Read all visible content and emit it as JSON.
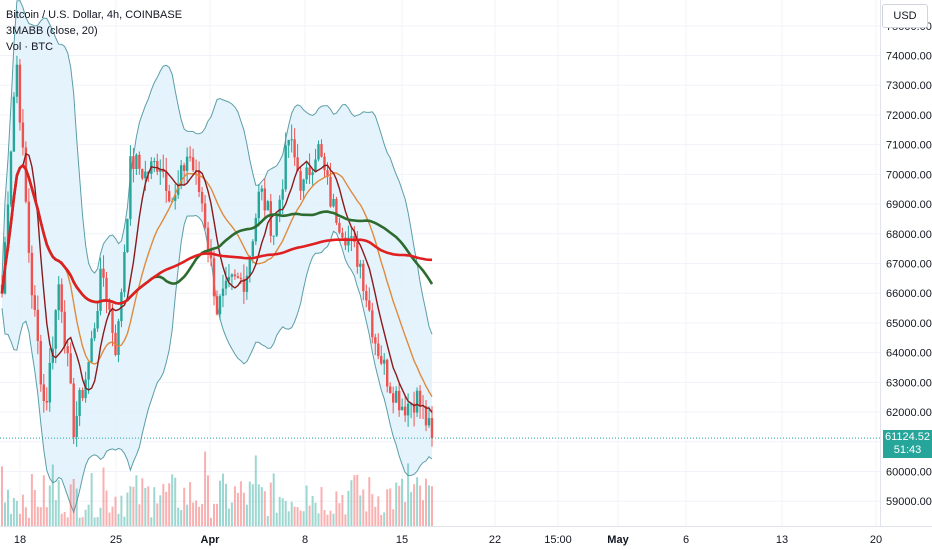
{
  "legend": {
    "symbol": "Bitcoin / U.S. Dollar, 4h, COINBASE",
    "indicator": "3MABB (close, 20)",
    "volume": "Vol · BTC"
  },
  "currency_button": "USD",
  "last_price": {
    "value": "61124.52",
    "countdown": "51:43"
  },
  "colors": {
    "up": "#26a69a",
    "down": "#ef5350",
    "band": "#5b9ea6",
    "band_fill": "#e1f1fb",
    "ma_fast": "#8b1a1a",
    "ma_mid": "#e08a3c",
    "ma_slow": "#2e6b2e",
    "ma_long": "#e02020"
  },
  "chart_data": {
    "type": "candlestick",
    "title": "Bitcoin / U.S. Dollar, 4h, COINBASE",
    "y_axis_ticks": [
      "59000.00",
      "60000.00",
      "61000.00",
      "62000.00",
      "63000.00",
      "64000.00",
      "65000.00",
      "66000.00",
      "67000.00",
      "68000.00",
      "69000.00",
      "70000.00",
      "71000.00",
      "72000.00",
      "73000.00",
      "74000.00",
      "75000.00"
    ],
    "ylim": [
      58300,
      75600
    ],
    "x_axis_ticks": [
      "18",
      "25",
      "Apr",
      "8",
      "15",
      "22",
      "15:00",
      "May",
      "6",
      "13",
      "20"
    ],
    "close_path": [
      66000,
      74000,
      66500,
      62000,
      66500,
      61500,
      63500,
      66800,
      64000,
      70500,
      70000,
      70500,
      69000,
      70800,
      69000,
      65500,
      66300,
      66500,
      69500,
      68000,
      71200,
      69500,
      71000,
      69000,
      68000,
      67000,
      64500,
      63000,
      62200,
      62500,
      61124.52
    ],
    "last_price": 61124.52,
    "series": [
      {
        "name": "3MABB (close, 20)",
        "values": []
      }
    ]
  }
}
